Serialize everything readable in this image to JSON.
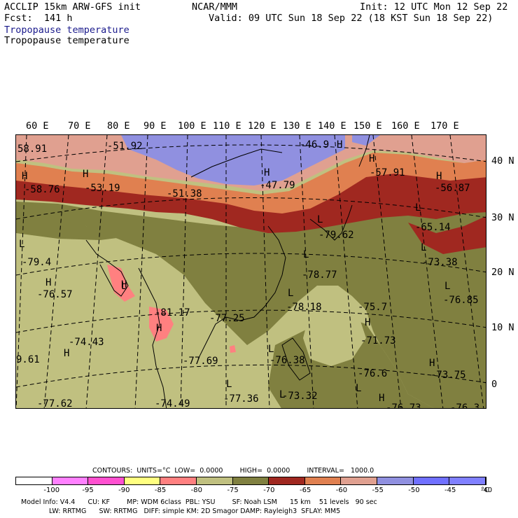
{
  "header": {
    "title": "ACCLIP 15km ARW-GFS init",
    "forecast": "Fcst:  141 h",
    "source": "NCAR/MMM",
    "init": "Init: 12 UTC Mon 12 Sep 22",
    "valid": "Valid: 09 UTC Sun 18 Sep 22 (18 KST Sun 18 Sep 22)",
    "field_line_1": "Tropopause temperature",
    "field_line_2": "Tropopause temperature"
  },
  "longitudes": [
    "60 E",
    "70 E",
    "80 E",
    "90 E",
    "100 E",
    "110 E",
    "120 E",
    "130 E",
    "140 E",
    "150 E",
    "160 E",
    "170 E"
  ],
  "latitudes": [
    "40 N",
    "30 N",
    "20 N",
    "10 N",
    "0"
  ],
  "map_labels": [
    {
      "text": "58.91"
    },
    {
      "text": "-51.92"
    },
    {
      "text": "H"
    },
    {
      "text": "-46.9"
    },
    {
      "text": "H"
    },
    {
      "text": "-58.76"
    },
    {
      "text": "H"
    },
    {
      "text": "-53.19"
    },
    {
      "text": "-51.38"
    },
    {
      "text": "H"
    },
    {
      "text": "-47.79"
    },
    {
      "text": "H"
    },
    {
      "text": "-57.91"
    },
    {
      "text": "H"
    },
    {
      "text": "-56.87"
    },
    {
      "text": "L"
    },
    {
      "text": "-65.14"
    },
    {
      "text": "L"
    },
    {
      "text": "-79.62"
    },
    {
      "text": "L"
    },
    {
      "text": "-79.4"
    },
    {
      "text": "L"
    },
    {
      "text": "-73.38"
    },
    {
      "text": "L"
    },
    {
      "text": "-78.77"
    },
    {
      "text": "H"
    },
    {
      "text": "-76.57"
    },
    {
      "text": "H"
    },
    {
      "text": "L"
    },
    {
      "text": "L"
    },
    {
      "text": "-76.85"
    },
    {
      "text": "L"
    },
    {
      "text": "-78.18"
    },
    {
      "text": "-75.7"
    },
    {
      "text": "-77.25"
    },
    {
      "text": "-81.17"
    },
    {
      "text": "H"
    },
    {
      "text": "H"
    },
    {
      "text": "-71.73"
    },
    {
      "text": "-74.43"
    },
    {
      "text": "H"
    },
    {
      "text": "L"
    },
    {
      "text": "-76.38"
    },
    {
      "text": "H"
    },
    {
      "text": "-73.75"
    },
    {
      "text": "9.61"
    },
    {
      "text": "-77.69"
    },
    {
      "text": "-76.6"
    },
    {
      "text": "L"
    },
    {
      "text": "L"
    },
    {
      "text": "L"
    },
    {
      "text": "-73.32"
    },
    {
      "text": "-77.36"
    },
    {
      "text": "H"
    },
    {
      "text": "-77.62"
    },
    {
      "text": "-74.49"
    },
    {
      "text": "-76.73"
    },
    {
      "text": "-76.3"
    }
  ],
  "colorbar": {
    "contours_line": "CONTOURS:  UNITS=°C  LOW=  0.0000        HIGH=  0.0000        INTERVAL=   1000.0",
    "colors": [
      "#ffffff",
      "#ff80ff",
      "#ff50d0",
      "#ffff80",
      "#ff8080",
      "#c0c080",
      "#808040",
      "#a02820",
      "#e08050",
      "#e0a090",
      "#9090e0",
      "#7070ff",
      "#8080ff"
    ],
    "ticks": [
      "-100",
      "-95",
      "-90",
      "-85",
      "-80",
      "-75",
      "-70",
      "-65",
      "-60",
      "-55",
      "-50",
      "-45",
      "-40",
      "°C"
    ]
  },
  "model_info": {
    "line1": "Model Info: V4.4      CU: KF        MP: WDM 6class  PBL: YSU        SF: Noah LSM      15 km    51 levels   90 sec",
    "line2": "LW: RRTMG      SW: RRTMG   DIFF: simple KM: 2D Smagor DAMP: Rayleigh3  SFLAY: MM5"
  },
  "map_colors": {
    "olive_light": "#c0c080",
    "olive_dark": "#808040",
    "darkred": "#a02820",
    "orange": "#e08050",
    "pink_light": "#e0a090",
    "lavender": "#9090e0",
    "salmon": "#ff8080"
  }
}
